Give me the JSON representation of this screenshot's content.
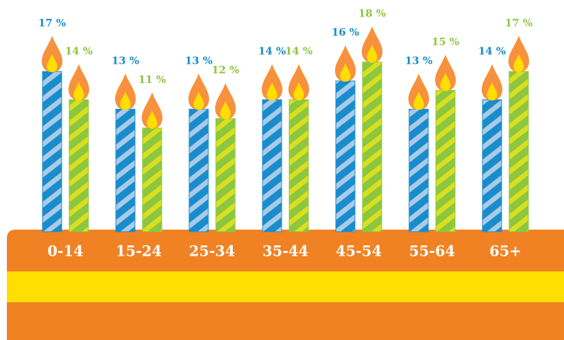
{
  "chart_data": {
    "type": "candle-bar",
    "categories": [
      "0-14",
      "15-24",
      "25-34",
      "35-44",
      "45-54",
      "55-64",
      "65+"
    ],
    "series": [
      {
        "color": "#1a8ccc",
        "values": [
          17,
          13,
          13,
          14,
          16,
          13,
          14
        ],
        "value_labels": [
          "17 %",
          "13 %",
          "13 %",
          "14 %",
          "16 %",
          "13 %",
          "14 %"
        ]
      },
      {
        "color": "#8dc63f",
        "values": [
          14,
          11,
          12,
          14,
          18,
          15,
          17
        ],
        "value_labels": [
          "14 %",
          "11 %",
          "12 %",
          "14 %",
          "18 %",
          "15 %",
          "17 %"
        ]
      }
    ]
  }
}
